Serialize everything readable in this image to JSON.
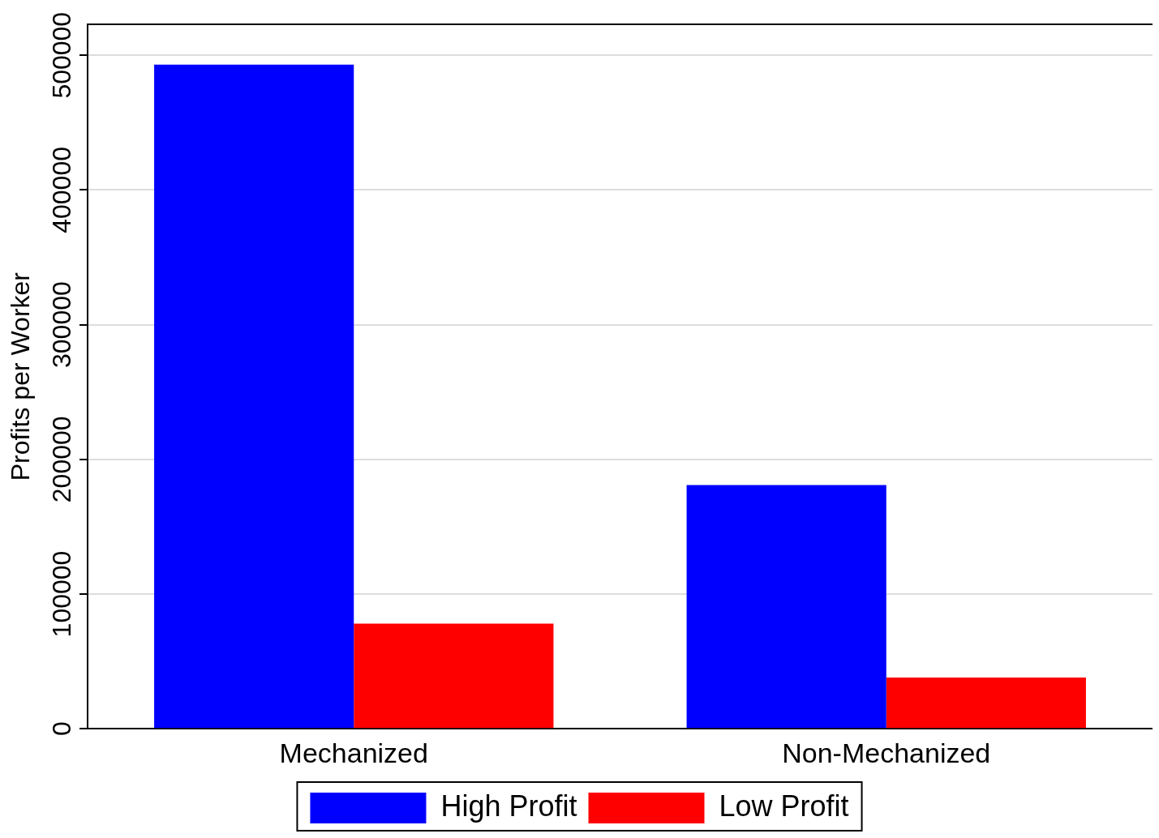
{
  "chart_data": {
    "type": "bar",
    "ylabel": "Profits per Worker",
    "categories": [
      "Mechanized",
      "Non-Mechanized"
    ],
    "series": [
      {
        "name": "High Profit",
        "color": "#0000ff",
        "values": [
          493000,
          181000
        ]
      },
      {
        "name": "Low Profit",
        "color": "#ff0000",
        "values": [
          78000,
          38000
        ]
      }
    ],
    "ylim": [
      0,
      523000
    ],
    "yticks": [
      0,
      100000,
      200000,
      300000,
      400000,
      500000
    ],
    "grid": "y",
    "legend": "bottom"
  }
}
